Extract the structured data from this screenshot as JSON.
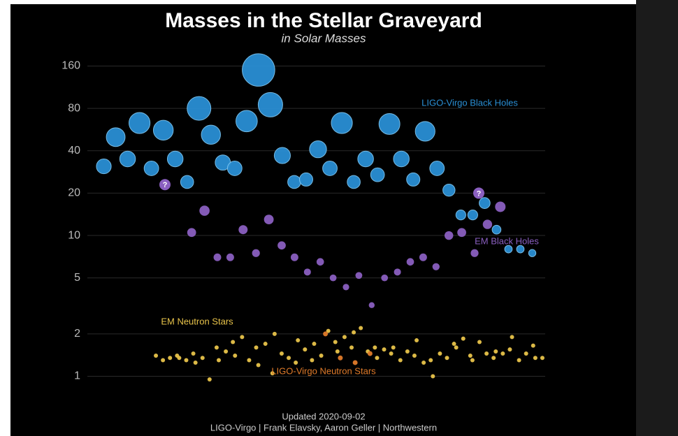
{
  "chart_data": {
    "type": "scatter",
    "title": "Masses in the Stellar Graveyard",
    "subtitle": "in Solar Masses",
    "yscale": "log",
    "grid": true,
    "ylim": [
      0.8,
      200
    ],
    "yticks": [
      1,
      2,
      5,
      10,
      20,
      40,
      80,
      160
    ],
    "series": [
      {
        "name": "LIGO-Virgo Black Holes",
        "color": "#2a8fd4",
        "values": [
          31,
          50,
          35,
          63,
          30,
          56,
          35,
          24,
          80,
          52,
          33,
          30,
          65,
          150,
          85,
          37,
          24,
          25,
          41,
          30,
          63,
          24,
          35,
          27,
          62,
          35,
          25,
          55,
          30,
          21,
          14,
          14,
          17,
          11,
          8,
          8,
          7.5
        ]
      },
      {
        "name": "EM Black Holes",
        "color": "#8a5fc0",
        "values": [
          10.5,
          15,
          7,
          7,
          11,
          7.5,
          13,
          8.5,
          7,
          5.5,
          6.5,
          5,
          4.3,
          5.2,
          3.2,
          5,
          5.5,
          6.5,
          7,
          6,
          10,
          10.5,
          7.5,
          12,
          16
        ]
      },
      {
        "name": "EM Neutron Stars",
        "color": "#e8c34a",
        "values": [
          1.4,
          1.3,
          1.35,
          1.4,
          1.35,
          1.3,
          1.45,
          1.25,
          1.35,
          0.95,
          1.6,
          1.3,
          1.5,
          1.75,
          1.4,
          1.9,
          1.3,
          1.6,
          1.2,
          1.7,
          1.05,
          2.0,
          1.45,
          1.35,
          1.25,
          1.8,
          1.55,
          1.3,
          1.7,
          1.4,
          2.1,
          1.75,
          1.5,
          1.9,
          1.6,
          2.05,
          2.2,
          1.5,
          1.6,
          1.35,
          1.55,
          1.45,
          1.6,
          1.3,
          1.5,
          1.4,
          1.8,
          1.25,
          1.3,
          1.0,
          1.45,
          1.35,
          1.7,
          1.6,
          1.85,
          1.4,
          1.3,
          1.75,
          1.45,
          1.35,
          1.5,
          1.45,
          1.55,
          1.9,
          1.3,
          1.45,
          1.65,
          1.35,
          1.35
        ]
      },
      {
        "name": "LIGO-Virgo Neutron Stars",
        "color": "#e07b2a",
        "values": [
          2.0,
          1.35,
          1.25,
          1.45
        ]
      }
    ],
    "annotations": [
      {
        "label": "?",
        "value": 23
      },
      {
        "label": "?",
        "value": 20
      }
    ],
    "footer": [
      "Updated 2020-09-02",
      "LIGO-Virgo | Frank Elavsky, Aaron Geller | Northwestern"
    ]
  }
}
